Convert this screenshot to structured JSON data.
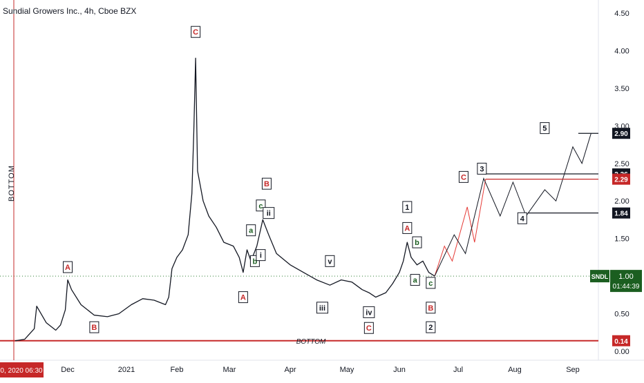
{
  "header": {
    "title": "Sundial Growers Inc., 4h, Cboe BZX"
  },
  "colors": {
    "price_bar": "#131722",
    "wave_red": "#c62828",
    "wave_green": "#1b5e20",
    "wave_black": "#131722",
    "dotted_line": "#2e7d32",
    "bottom_line": "#c62828",
    "current_price_bg": "#1b5e20",
    "projection_red": "#e53935"
  },
  "chart_data": {
    "type": "line",
    "symbol": "SNDL",
    "interval": "4h",
    "exchange": "Cboe BZX",
    "ylim": [
      0.0,
      4.5
    ],
    "y_ticks": [
      "4.50",
      "4.00",
      "3.50",
      "3.00",
      "2.50",
      "2.00",
      "1.50",
      "1.00",
      "0.50",
      "0.00"
    ],
    "x_ticks": [
      "Dec",
      "2021",
      "Feb",
      "Mar",
      "Apr",
      "May",
      "Jun",
      "Jul",
      "Aug",
      "Sep"
    ],
    "cursor_date": "0, 2020  06:30",
    "price_path": [
      [
        "2020-11-09",
        0.14
      ],
      [
        "2020-11-13",
        0.16
      ],
      [
        "2020-11-17",
        0.3
      ],
      [
        "2020-11-18",
        0.6
      ],
      [
        "2020-11-22",
        0.38
      ],
      [
        "2020-11-26",
        0.28
      ],
      [
        "2020-11-28",
        0.35
      ],
      [
        "2020-11-30",
        0.55
      ],
      [
        "2020-12-01",
        0.95
      ],
      [
        "2020-12-03",
        0.82
      ],
      [
        "2020-12-08",
        0.62
      ],
      [
        "2020-12-15",
        0.48
      ],
      [
        "2020-12-22",
        0.46
      ],
      [
        "2020-12-28",
        0.5
      ],
      [
        "2021-01-04",
        0.62
      ],
      [
        "2021-01-11",
        0.7
      ],
      [
        "2021-01-18",
        0.68
      ],
      [
        "2021-01-25",
        0.62
      ],
      [
        "2021-01-27",
        0.72
      ],
      [
        "2021-01-29",
        1.1
      ],
      [
        "2021-02-01",
        1.25
      ],
      [
        "2021-02-04",
        1.35
      ],
      [
        "2021-02-07",
        1.55
      ],
      [
        "2021-02-09",
        2.1
      ],
      [
        "2021-02-10",
        2.9
      ],
      [
        "2021-02-11",
        3.9
      ],
      [
        "2021-02-12",
        2.4
      ],
      [
        "2021-02-15",
        2.0
      ],
      [
        "2021-02-18",
        1.8
      ],
      [
        "2021-02-22",
        1.65
      ],
      [
        "2021-02-26",
        1.45
      ],
      [
        "2021-03-03",
        1.4
      ],
      [
        "2021-03-06",
        1.25
      ],
      [
        "2021-03-08",
        1.05
      ],
      [
        "2021-03-10",
        1.35
      ],
      [
        "2021-03-12",
        1.2
      ],
      [
        "2021-03-15",
        1.4
      ],
      [
        "2021-03-18",
        1.75
      ],
      [
        "2021-03-21",
        1.55
      ],
      [
        "2021-03-25",
        1.3
      ],
      [
        "2021-04-01",
        1.15
      ],
      [
        "2021-04-08",
        1.05
      ],
      [
        "2021-04-15",
        0.95
      ],
      [
        "2021-04-22",
        0.88
      ],
      [
        "2021-04-28",
        0.95
      ],
      [
        "2021-05-04",
        0.92
      ],
      [
        "2021-05-10",
        0.82
      ],
      [
        "2021-05-14",
        0.78
      ],
      [
        "2021-05-18",
        0.72
      ],
      [
        "2021-05-24",
        0.78
      ],
      [
        "2021-05-28",
        0.9
      ],
      [
        "2021-06-01",
        1.05
      ],
      [
        "2021-06-03",
        1.2
      ],
      [
        "2021-06-05",
        1.45
      ],
      [
        "2021-06-07",
        1.25
      ],
      [
        "2021-06-10",
        1.15
      ],
      [
        "2021-06-13",
        1.2
      ],
      [
        "2021-06-16",
        1.05
      ],
      [
        "2021-06-19",
        1.0
      ]
    ],
    "projection_black": [
      [
        "2021-06-19",
        1.0
      ],
      [
        "2021-06-29",
        1.55
      ],
      [
        "2021-07-05",
        1.3
      ],
      [
        "2021-07-15",
        2.3
      ],
      [
        "2021-07-24",
        1.8
      ],
      [
        "2021-07-31",
        2.25
      ],
      [
        "2021-08-07",
        1.8
      ],
      [
        "2021-08-17",
        2.15
      ],
      [
        "2021-08-23",
        2.0
      ],
      [
        "2021-09-01",
        2.72
      ],
      [
        "2021-09-06",
        2.5
      ],
      [
        "2021-09-11",
        2.9
      ]
    ],
    "projection_red": [
      [
        "2021-06-19",
        1.0
      ],
      [
        "2021-06-24",
        1.4
      ],
      [
        "2021-06-28",
        1.2
      ],
      [
        "2021-07-06",
        1.92
      ],
      [
        "2021-07-10",
        1.45
      ],
      [
        "2021-07-16",
        2.29
      ]
    ],
    "levels": [
      {
        "value": 2.9,
        "label": "2.90",
        "color": "#131722"
      },
      {
        "value": 2.36,
        "label": "2.36",
        "color": "#131722"
      },
      {
        "value": 2.29,
        "label": "2.29",
        "color": "#c62828"
      },
      {
        "value": 1.84,
        "label": "1.84",
        "color": "#131722"
      },
      {
        "value": 0.14,
        "label": "0.14",
        "color": "#c62828"
      }
    ],
    "current_price": {
      "symbol": "SNDL",
      "price": "1.00",
      "countdown": "01:44:39"
    },
    "annotations": [
      {
        "text": "C",
        "date": "2021-02-11",
        "price": 4.25,
        "color": "#c62828",
        "boxed": true
      },
      {
        "text": "A",
        "date": "2020-12-01",
        "price": 1.12,
        "color": "#c62828",
        "boxed": true
      },
      {
        "text": "B",
        "date": "2020-12-15",
        "price": 0.32,
        "color": "#c62828",
        "boxed": true
      },
      {
        "text": "A",
        "date": "2021-03-08",
        "price": 0.72,
        "color": "#c62828",
        "boxed": true
      },
      {
        "text": "B",
        "date": "2021-03-20",
        "price": 2.23,
        "color": "#c62828",
        "boxed": true
      },
      {
        "text": "a",
        "date": "2021-03-12",
        "price": 1.61,
        "color": "#1b5e20",
        "boxed": true
      },
      {
        "text": "b",
        "date": "2021-03-14",
        "price": 1.2,
        "color": "#1b5e20",
        "boxed": true
      },
      {
        "text": "c",
        "date": "2021-03-17",
        "price": 1.94,
        "color": "#1b5e20",
        "boxed": true
      },
      {
        "text": "i",
        "date": "2021-03-17",
        "price": 1.28,
        "color": "#131722",
        "boxed": true
      },
      {
        "text": "ii",
        "date": "2021-03-21",
        "price": 1.84,
        "color": "#131722",
        "boxed": true
      },
      {
        "text": "iii",
        "date": "2021-04-18",
        "price": 0.58,
        "color": "#131722",
        "boxed": true
      },
      {
        "text": "v",
        "date": "2021-04-22",
        "price": 1.2,
        "color": "#131722",
        "boxed": true
      },
      {
        "text": "iv",
        "date": "2021-05-14",
        "price": 0.52,
        "color": "#131722",
        "boxed": true
      },
      {
        "text": "C",
        "date": "2021-05-14",
        "price": 0.31,
        "color": "#c62828",
        "boxed": true
      },
      {
        "text": "1",
        "date": "2021-06-05",
        "price": 1.92,
        "color": "#131722",
        "boxed": true
      },
      {
        "text": "A",
        "date": "2021-06-05",
        "price": 1.64,
        "color": "#c62828",
        "boxed": true
      },
      {
        "text": "b",
        "date": "2021-06-10",
        "price": 1.45,
        "color": "#1b5e20",
        "boxed": true
      },
      {
        "text": "a",
        "date": "2021-06-09",
        "price": 0.95,
        "color": "#1b5e20",
        "boxed": true
      },
      {
        "text": "c",
        "date": "2021-06-17",
        "price": 0.91,
        "color": "#1b5e20",
        "boxed": true
      },
      {
        "text": "B",
        "date": "2021-06-17",
        "price": 0.58,
        "color": "#c62828",
        "boxed": true
      },
      {
        "text": "2",
        "date": "2021-06-17",
        "price": 0.32,
        "color": "#131722",
        "boxed": true
      },
      {
        "text": "C",
        "date": "2021-07-04",
        "price": 2.32,
        "color": "#c62828",
        "boxed": true
      },
      {
        "text": "3",
        "date": "2021-07-14",
        "price": 2.43,
        "color": "#131722",
        "boxed": true
      },
      {
        "text": "4",
        "date": "2021-08-05",
        "price": 1.77,
        "color": "#131722",
        "boxed": true
      },
      {
        "text": "5",
        "date": "2021-08-17",
        "price": 2.97,
        "color": "#131722",
        "boxed": true
      }
    ],
    "bottom_text": "BOTTOM",
    "vertical_text": "BOTTOM"
  }
}
